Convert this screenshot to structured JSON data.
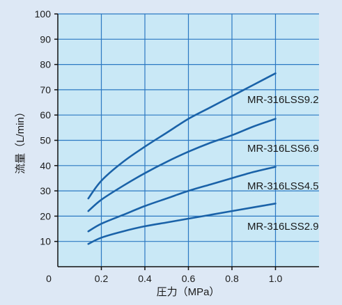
{
  "chart_data": {
    "type": "line",
    "xlabel": "圧力（MPa）",
    "ylabel": "流量（L/min）",
    "xlim": [
      0,
      1.2
    ],
    "ylim": [
      0,
      100
    ],
    "x_ticks": [
      0.2,
      0.4,
      0.6,
      0.8,
      1.0
    ],
    "x_tick_labels": [
      "0.2",
      "0.4",
      "0.6",
      "0.8",
      "1.0"
    ],
    "origin_label": "0",
    "y_ticks": [
      10,
      20,
      30,
      40,
      50,
      60,
      70,
      80,
      90,
      100
    ],
    "y_tick_labels": [
      "10",
      "20",
      "30",
      "40",
      "50",
      "60",
      "70",
      "80",
      "90",
      "100"
    ],
    "grid": true,
    "colors": {
      "plot_background": "#c9e8f6",
      "page_background": "#dde8f5",
      "grid": "#2b78c2",
      "line": "#1a62a8",
      "axis": "#111111"
    },
    "series": [
      {
        "name": "MR-316LSS9.2",
        "x": [
          0.14,
          0.2,
          0.3,
          0.4,
          0.5,
          0.6,
          0.7,
          0.8,
          0.9,
          1.0
        ],
        "y": [
          27,
          34,
          41.5,
          47.5,
          53,
          58.5,
          63,
          67.5,
          72,
          76.5
        ]
      },
      {
        "name": "MR-316LSS6.9",
        "x": [
          0.14,
          0.2,
          0.3,
          0.4,
          0.5,
          0.6,
          0.7,
          0.8,
          0.9,
          1.0
        ],
        "y": [
          22,
          26.5,
          32,
          37,
          41.5,
          45.5,
          49,
          52,
          55.5,
          58.5
        ]
      },
      {
        "name": "MR-316LSS4.5",
        "x": [
          0.14,
          0.2,
          0.3,
          0.4,
          0.5,
          0.6,
          0.7,
          0.8,
          0.9,
          1.0
        ],
        "y": [
          14,
          17,
          20.5,
          24,
          27,
          30,
          32.5,
          35,
          37.5,
          39.5
        ]
      },
      {
        "name": "MR-316LSS2.9",
        "x": [
          0.14,
          0.2,
          0.3,
          0.4,
          0.5,
          0.6,
          0.7,
          0.8,
          0.9,
          1.0
        ],
        "y": [
          9,
          11.5,
          14,
          16,
          17.5,
          19,
          20.5,
          22,
          23.5,
          25
        ]
      }
    ]
  }
}
